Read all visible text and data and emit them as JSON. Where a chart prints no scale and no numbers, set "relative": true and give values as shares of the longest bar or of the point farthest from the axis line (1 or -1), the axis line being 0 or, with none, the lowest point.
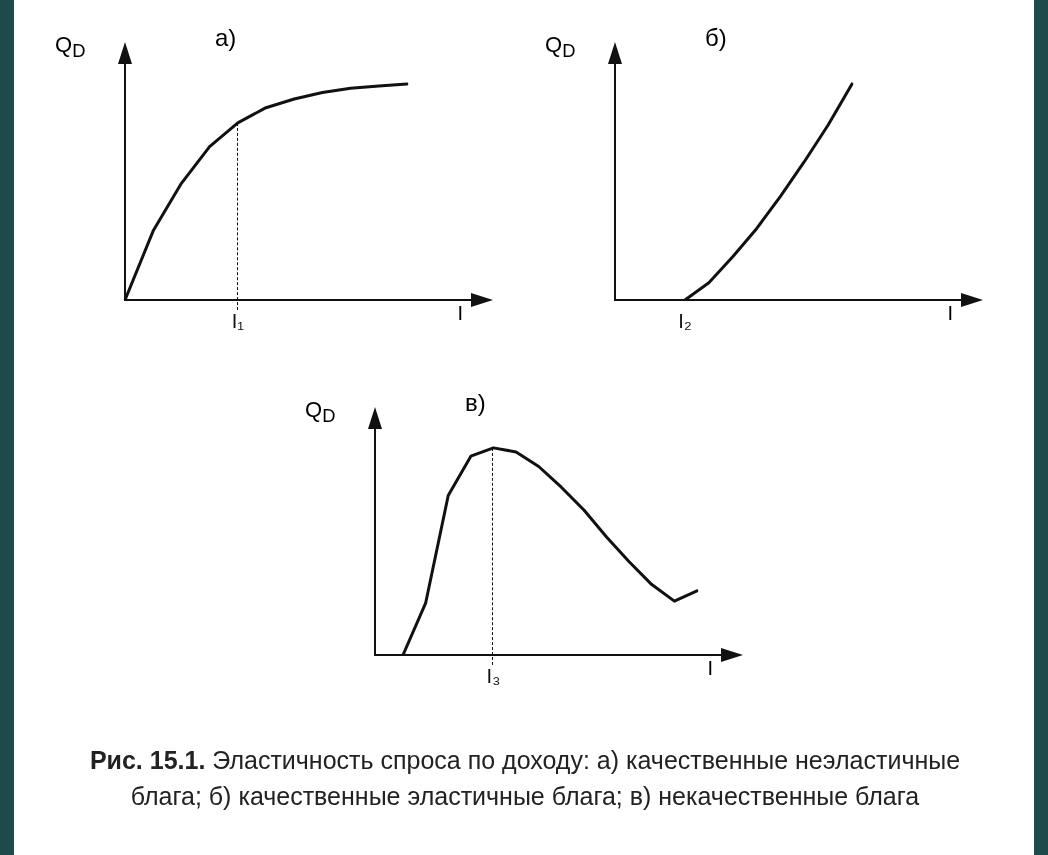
{
  "chart_data": [
    {
      "type": "line",
      "title": "а)",
      "xlabel": "I",
      "ylabel": "Q$_{D}$",
      "relative": true,
      "grid": false,
      "legend": false,
      "marker": "none",
      "line_style": "solid",
      "color": "#111111",
      "categories": [
        null,
        null,
        null,
        null,
        null,
        null,
        null,
        null,
        null,
        null,
        null
      ],
      "values": [
        0,
        0.32,
        0.54,
        0.71,
        0.82,
        0.89,
        0.93,
        0.96,
        0.98,
        0.99,
        1
      ],
      "annotations": [
        "I₁"
      ]
    },
    {
      "type": "line",
      "title": "б)",
      "xlabel": "I",
      "ylabel": "Q$_{D}$",
      "relative": true,
      "grid": false,
      "legend": false,
      "marker": "none",
      "line_style": "solid",
      "color": "#111111",
      "categories": [
        null,
        null,
        null,
        null,
        null,
        null,
        null,
        null
      ],
      "values": [
        0,
        0.08,
        0.2,
        0.33,
        0.48,
        0.64,
        0.81,
        1
      ],
      "annotations": [
        "I₂"
      ]
    },
    {
      "type": "line",
      "title": "в)",
      "xlabel": "I",
      "ylabel": "Q$_{D}$",
      "relative": true,
      "grid": false,
      "legend": false,
      "marker": "none",
      "line_style": "solid",
      "color": "#111111",
      "categories": [
        null,
        null,
        null,
        null,
        null,
        null,
        null,
        null,
        null,
        null,
        null,
        null,
        null,
        null
      ],
      "values": [
        0,
        0.25,
        0.77,
        0.96,
        1,
        0.98,
        0.91,
        0.81,
        0.7,
        0.57,
        0.45,
        0.34,
        0.26,
        0.31
      ],
      "annotations": [
        "I₃",
        "Рис. 15.1.",
        "Эластичность спроса по доходу: а) качественные неэластичные блага; б) качественные эластичные блага; в) некачественные блага"
      ]
    }
  ]
}
